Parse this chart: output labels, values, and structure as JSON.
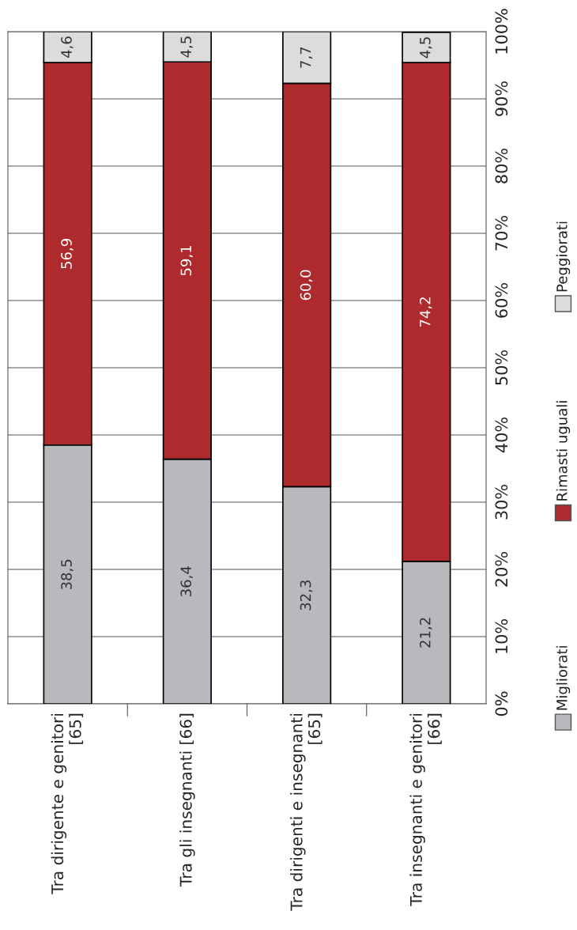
{
  "chart_data": {
    "type": "bar",
    "stacked": true,
    "categories": [
      "Tra dirigente e genitori\n[65]",
      "Tra gli insegnanti [66]",
      "Tra dirigenti e insegnanti\n[65]",
      "Tra insegnanti e genitori\n[66]"
    ],
    "series": [
      {
        "name": "Migliorati",
        "color": "#b8b9bc",
        "values": [
          38.5,
          36.4,
          32.3,
          21.2
        ],
        "value_labels": [
          "38,5",
          "36,4",
          "32,3",
          "21,2"
        ]
      },
      {
        "name": "Rimasti uguali",
        "color": "#ae2a2c",
        "values": [
          56.9,
          59.1,
          60.0,
          74.2
        ],
        "value_labels": [
          "56,9",
          "59,1",
          "60,0",
          "74,2"
        ]
      },
      {
        "name": "Peggiorati",
        "color": "#dcdcdd",
        "values": [
          4.6,
          4.5,
          7.7,
          4.5
        ],
        "value_labels": [
          "4,6",
          "4,5",
          "7,7",
          "4,5"
        ]
      }
    ],
    "ylim": [
      0,
      100
    ],
    "yticks": [
      {
        "value": 0,
        "label": "0%"
      },
      {
        "value": 10,
        "label": "10%"
      },
      {
        "value": 20,
        "label": "20%"
      },
      {
        "value": 30,
        "label": "30%"
      },
      {
        "value": 40,
        "label": "40%"
      },
      {
        "value": 50,
        "label": "50%"
      },
      {
        "value": 60,
        "label": "60%"
      },
      {
        "value": 70,
        "label": "70%"
      },
      {
        "value": 80,
        "label": "80%"
      },
      {
        "value": 90,
        "label": "90%"
      },
      {
        "value": 100,
        "label": "100%"
      }
    ],
    "grid": "y",
    "legend": "right"
  }
}
